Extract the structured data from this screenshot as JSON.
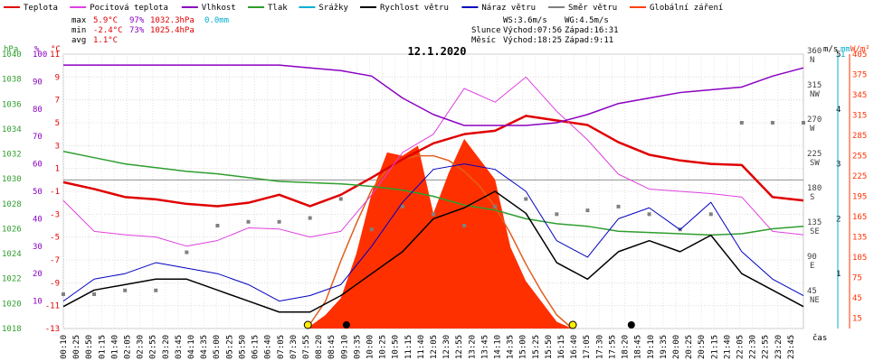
{
  "legend": [
    {
      "label": "Teplota",
      "color": "#e00000"
    },
    {
      "label": "Pocitová teplota",
      "color": "#e040e0"
    },
    {
      "label": "Vlhkost",
      "color": "#8a00c0"
    },
    {
      "label": "Tlak",
      "color": "#2e9e2e"
    },
    {
      "label": "Srážky",
      "color": "#00b0d0"
    },
    {
      "label": "Rychlost větru",
      "color": "#000000"
    },
    {
      "label": "Náraz větru",
      "color": "#0000c0"
    },
    {
      "label": "Směr větru",
      "color": "#808080"
    },
    {
      "label": "Globální záření",
      "color": "#ff4000"
    }
  ],
  "stats": {
    "max": {
      "label": "max",
      "temp": "5.9°C",
      "hum": "97%",
      "press": "1032.3hPa",
      "rain": "0.0mm"
    },
    "min": {
      "label": "min",
      "temp": "-2.4°C",
      "hum": "73%",
      "press": "1025.4hPa"
    },
    "avg": {
      "label": "avg",
      "temp": "1.1°C"
    }
  },
  "info": {
    "ws": "WS:3.6m/s",
    "wg": "WG:4.5m/s",
    "sun_label": "Slunce",
    "sunrise": "Východ:07:56",
    "sunset": "Západ:16:31",
    "moon_label": "Měsíc",
    "moonrise": "Východ:18:25",
    "moonset": "Západ:9:11"
  },
  "axis_units": {
    "hpa": "hPa",
    "pct": "%",
    "degc": "°C",
    "ms": "m/s",
    "mm": "mm",
    "wm2": "W/m²",
    "cas": "čas"
  },
  "colors": {
    "temp": "#e00000",
    "feels": "#e040e0",
    "hum": "#8a00c0",
    "press": "#2e9e2e",
    "rain": "#00b0d0",
    "wind": "#000000",
    "gust": "#0000c0",
    "dir": "#808080",
    "rad": "#ff3000",
    "radmax": "#e06020"
  },
  "chart_data": {
    "type": "line",
    "title": "12.1.2020",
    "x_labels": [
      "00:10",
      "00:25",
      "00:50",
      "01:15",
      "01:40",
      "02:05",
      "02:30",
      "02:55",
      "03:20",
      "03:45",
      "04:10",
      "04:35",
      "05:00",
      "05:25",
      "05:50",
      "06:15",
      "06:40",
      "07:05",
      "07:30",
      "07:55",
      "08:20",
      "08:45",
      "09:10",
      "09:35",
      "10:00",
      "10:25",
      "10:50",
      "11:15",
      "11:40",
      "12:05",
      "12:30",
      "12:55",
      "13:20",
      "13:45",
      "14:10",
      "14:35",
      "15:00",
      "15:25",
      "15:50",
      "16:15",
      "16:40",
      "17:05",
      "17:30",
      "17:55",
      "18:20",
      "18:45",
      "19:10",
      "19:35",
      "20:00",
      "20:25",
      "20:50",
      "21:15",
      "21:40",
      "22:05",
      "22:30",
      "22:55",
      "23:20",
      "23:45"
    ],
    "axes": {
      "pressure_hpa": {
        "ticks": [
          "1018",
          "1020",
          "1022",
          "1024",
          "1026",
          "1028",
          "1030",
          "1032",
          "1034",
          "1036",
          "1038",
          "1040"
        ],
        "range": [
          1018,
          1040
        ]
      },
      "humidity_pct": {
        "ticks": [
          "10",
          "20",
          "30",
          "40",
          "50",
          "60",
          "70",
          "80",
          "90",
          "100"
        ],
        "range": [
          0,
          100
        ]
      },
      "temperature_c": {
        "ticks": [
          "-13",
          "-11",
          "-9",
          "-7",
          "-5",
          "-3",
          "-1",
          "1",
          "3",
          "5",
          "7",
          "9",
          "11"
        ],
        "range": [
          -13,
          11
        ]
      },
      "wind_dir": {
        "ticks": [
          "NE 45",
          "E 90",
          "SE 135",
          "S 180",
          "SW 225",
          "W 270",
          "NW 315",
          "N 360"
        ],
        "range": [
          0,
          360
        ]
      },
      "wind_ms": {
        "ticks": [
          "1",
          "2",
          "3",
          "4",
          "5"
        ],
        "range": [
          0,
          5
        ]
      },
      "rain_mm": {
        "ticks": [
          "1"
        ],
        "range": [
          0,
          1
        ]
      },
      "radiation_wm2": {
        "ticks": [
          "15",
          "45",
          "75",
          "105",
          "135",
          "165",
          "195",
          "225",
          "255",
          "285",
          "315",
          "345",
          "375",
          "405"
        ],
        "range": [
          0,
          405
        ]
      }
    },
    "series": [
      {
        "name": "Teplota",
        "unit": "°C",
        "x": [
          0,
          1,
          2,
          3,
          4,
          5,
          6,
          7,
          8,
          9,
          10,
          11,
          12,
          13,
          14,
          15,
          16,
          17,
          18,
          19,
          20,
          21,
          22,
          23,
          24
        ],
        "values": [
          -0.2,
          -0.8,
          -1.5,
          -1.7,
          -2.1,
          -2.3,
          -2.0,
          -1.3,
          -2.3,
          -1.3,
          0.2,
          1.8,
          3.2,
          4.0,
          4.3,
          5.6,
          5.2,
          4.8,
          3.3,
          2.2,
          1.7,
          1.4,
          1.3,
          -1.5,
          -1.8
        ]
      },
      {
        "name": "Pocitová teplota",
        "unit": "°C",
        "x": [
          0,
          1,
          2,
          3,
          4,
          5,
          6,
          7,
          8,
          9,
          10,
          11,
          12,
          13,
          14,
          15,
          16,
          17,
          18,
          19,
          20,
          21,
          22,
          23,
          24
        ],
        "values": [
          -1.8,
          -4.5,
          -4.8,
          -5.0,
          -5.8,
          -5.3,
          -4.2,
          -4.3,
          -5.0,
          -4.5,
          -1.3,
          2.4,
          4.0,
          8.0,
          6.8,
          9.0,
          6.0,
          3.5,
          0.5,
          -0.8,
          -1.0,
          -1.2,
          -1.5,
          -4.5,
          -4.8
        ]
      },
      {
        "name": "Vlhkost",
        "unit": "%",
        "x": [
          0,
          1,
          2,
          3,
          4,
          5,
          6,
          7,
          8,
          9,
          10,
          11,
          12,
          13,
          14,
          15,
          16,
          17,
          18,
          19,
          20,
          21,
          22,
          23,
          24
        ],
        "values": [
          96,
          96,
          96,
          96,
          96,
          96,
          96,
          96,
          95,
          94,
          92,
          84,
          78,
          74,
          74,
          74,
          75,
          78,
          82,
          84,
          86,
          87,
          88,
          92,
          95
        ]
      },
      {
        "name": "Tlak",
        "unit": "hPa",
        "x": [
          0,
          1,
          2,
          3,
          4,
          5,
          6,
          7,
          8,
          9,
          10,
          11,
          12,
          13,
          14,
          15,
          16,
          17,
          18,
          19,
          20,
          21,
          22,
          23,
          24
        ],
        "values": [
          1032.2,
          1031.7,
          1031.2,
          1030.9,
          1030.6,
          1030.4,
          1030.1,
          1029.8,
          1029.7,
          1029.6,
          1029.4,
          1029.1,
          1028.6,
          1027.9,
          1027.5,
          1026.8,
          1026.4,
          1026.2,
          1025.8,
          1025.7,
          1025.6,
          1025.5,
          1025.6,
          1026.0,
          1026.2
        ]
      },
      {
        "name": "Rychlost větru",
        "unit": "m/s",
        "x": [
          0,
          1,
          2,
          3,
          4,
          5,
          6,
          7,
          8,
          9,
          10,
          11,
          12,
          13,
          14,
          15,
          16,
          17,
          18,
          19,
          20,
          21,
          22,
          23,
          24
        ],
        "values": [
          0.4,
          0.7,
          0.8,
          0.9,
          0.9,
          0.7,
          0.5,
          0.3,
          0.3,
          0.6,
          1.0,
          1.4,
          2.0,
          2.2,
          2.5,
          2.1,
          1.2,
          0.9,
          1.4,
          1.6,
          1.4,
          1.7,
          1.0,
          0.7,
          0.4
        ]
      },
      {
        "name": "Náraz větru",
        "unit": "m/s",
        "x": [
          0,
          1,
          2,
          3,
          4,
          5,
          6,
          7,
          8,
          9,
          10,
          11,
          12,
          13,
          14,
          15,
          16,
          17,
          18,
          19,
          20,
          21,
          22,
          23,
          24
        ],
        "values": [
          0.5,
          0.9,
          1.0,
          1.2,
          1.1,
          1.0,
          0.8,
          0.5,
          0.6,
          0.8,
          1.5,
          2.3,
          2.9,
          3.0,
          2.9,
          2.5,
          1.6,
          1.3,
          2.0,
          2.2,
          1.8,
          2.3,
          1.4,
          0.9,
          0.6
        ]
      },
      {
        "name": "Globální záření",
        "unit": "W/m²",
        "x": [
          7.9,
          8.5,
          9,
          9.5,
          10,
          10.5,
          11,
          11.5,
          12,
          12.5,
          13,
          13.5,
          14,
          14.5,
          15,
          15.5,
          16,
          16.5
        ],
        "values": [
          0,
          20,
          45,
          110,
          200,
          260,
          255,
          270,
          170,
          230,
          280,
          250,
          220,
          120,
          70,
          40,
          10,
          0
        ]
      },
      {
        "name": "Globální záření max",
        "unit": "W/m²",
        "x": [
          7.9,
          8.5,
          9,
          9.5,
          10,
          10.5,
          11,
          11.5,
          12,
          12.5,
          13,
          13.5,
          14,
          14.5,
          15,
          15.5,
          16,
          16.5
        ],
        "values": [
          0,
          40,
          100,
          155,
          205,
          235,
          250,
          255,
          255,
          248,
          232,
          210,
          180,
          140,
          95,
          55,
          20,
          0
        ]
      },
      {
        "name": "Směr větru",
        "unit": "°",
        "x": [
          0,
          1,
          2,
          3,
          4,
          5,
          6,
          7,
          8,
          9,
          10,
          11,
          12,
          13,
          14,
          15,
          16,
          17,
          18,
          19,
          20,
          21,
          22,
          23,
          24
        ],
        "values": [
          45,
          45,
          50,
          50,
          100,
          135,
          140,
          140,
          145,
          170,
          130,
          160,
          150,
          135,
          160,
          170,
          150,
          155,
          160,
          150,
          130,
          150,
          270,
          270,
          270
        ]
      }
    ],
    "grid": true,
    "legend_position": "top"
  }
}
